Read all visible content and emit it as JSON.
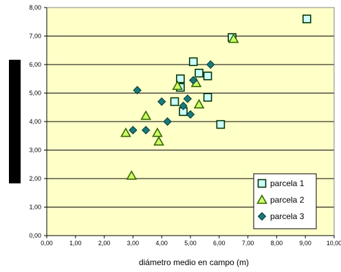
{
  "colors": {
    "plot_bg": "#FFFFC8",
    "grid": "#000000",
    "series1_fill": "#CCFFFF",
    "series1_stroke": "#003300",
    "series2_fill": "#CCFF66",
    "series2_stroke": "#336600",
    "series3_fill": "#1A7A7A",
    "series3_stroke": "#003333",
    "ylabel_block": "#000000"
  },
  "chart_data": {
    "type": "scatter",
    "xlabel": "diámetro medio en campo (m)",
    "ylabel": "",
    "xlim": [
      0,
      10
    ],
    "ylim": [
      0,
      8
    ],
    "grid": "horizontal",
    "legend_position": "bottom-right",
    "x_ticks": [
      "0,00",
      "1,00",
      "2,00",
      "3,00",
      "4,00",
      "5,00",
      "6,00",
      "7,00",
      "8,00",
      "9,00",
      "10,00"
    ],
    "y_ticks": [
      "0,00",
      "1,00",
      "2,00",
      "3,00",
      "4,00",
      "5,00",
      "6,00",
      "7,00",
      "8,00"
    ],
    "series": [
      {
        "name": "parcela 1",
        "marker": "square",
        "points": [
          [
            9.05,
            7.6
          ],
          [
            6.45,
            6.95
          ],
          [
            5.1,
            6.1
          ],
          [
            5.3,
            5.7
          ],
          [
            5.6,
            5.6
          ],
          [
            4.65,
            5.5
          ],
          [
            4.65,
            5.2
          ],
          [
            5.6,
            4.85
          ],
          [
            4.45,
            4.7
          ],
          [
            4.75,
            4.35
          ],
          [
            6.05,
            3.9
          ]
        ]
      },
      {
        "name": "parcela 2",
        "marker": "triangle",
        "points": [
          [
            6.5,
            6.9
          ],
          [
            4.55,
            5.25
          ],
          [
            5.2,
            5.35
          ],
          [
            5.3,
            4.6
          ],
          [
            3.45,
            4.2
          ],
          [
            2.75,
            3.6
          ],
          [
            3.85,
            3.6
          ],
          [
            3.9,
            3.3
          ],
          [
            2.95,
            2.1
          ]
        ]
      },
      {
        "name": "parcela 3",
        "marker": "diamond",
        "points": [
          [
            5.7,
            6.0
          ],
          [
            5.1,
            5.45
          ],
          [
            3.15,
            5.1
          ],
          [
            4.9,
            4.8
          ],
          [
            4.0,
            4.7
          ],
          [
            4.75,
            4.55
          ],
          [
            5.0,
            4.25
          ],
          [
            4.2,
            4.0
          ],
          [
            3.0,
            3.7
          ],
          [
            3.45,
            3.7
          ]
        ]
      }
    ]
  }
}
